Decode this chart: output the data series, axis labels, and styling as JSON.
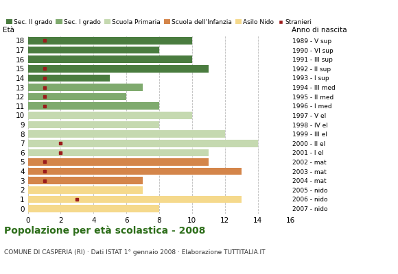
{
  "ages": [
    18,
    17,
    16,
    15,
    14,
    13,
    12,
    11,
    10,
    9,
    8,
    7,
    6,
    5,
    4,
    3,
    2,
    1,
    0
  ],
  "anno_nascita": [
    "1989 - V sup",
    "1990 - VI sup",
    "1991 - III sup",
    "1992 - II sup",
    "1993 - I sup",
    "1994 - III med",
    "1995 - II med",
    "1996 - I med",
    "1997 - V el",
    "1998 - IV el",
    "1999 - III el",
    "2000 - II el",
    "2001 - I el",
    "2002 - mat",
    "2003 - mat",
    "2004 - mat",
    "2005 - nido",
    "2006 - nido",
    "2007 - nido"
  ],
  "bar_values": [
    10,
    8,
    10,
    11,
    5,
    7,
    6,
    8,
    10,
    8,
    12,
    14,
    11,
    11,
    13,
    7,
    7,
    13,
    8
  ],
  "bar_colors": [
    "#4a7c3f",
    "#4a7c3f",
    "#4a7c3f",
    "#4a7c3f",
    "#4a7c3f",
    "#7faa6e",
    "#7faa6e",
    "#7faa6e",
    "#c5d9b0",
    "#c5d9b0",
    "#c5d9b0",
    "#c5d9b0",
    "#c5d9b0",
    "#d4854a",
    "#d4854a",
    "#d4854a",
    "#f5d98c",
    "#f5d98c",
    "#f5d98c"
  ],
  "stranieri_values": [
    1,
    0,
    0,
    1,
    1,
    1,
    1,
    1,
    0,
    0,
    0,
    2,
    2,
    1,
    1,
    1,
    0,
    3,
    0
  ],
  "stranieri_color": "#9b1c1c",
  "legend_labels": [
    "Sec. II grado",
    "Sec. I grado",
    "Scuola Primaria",
    "Scuola dell'Infanzia",
    "Asilo Nido",
    "Stranieri"
  ],
  "legend_colors": [
    "#4a7c3f",
    "#7faa6e",
    "#c5d9b0",
    "#d4854a",
    "#f5d98c",
    "#9b1c1c"
  ],
  "xlabel_vals": [
    0,
    2,
    4,
    6,
    8,
    10,
    12,
    14,
    16
  ],
  "xlim": [
    0,
    16
  ],
  "title": "Popolazione per età scolastica - 2008",
  "subtitle": "COMUNE DI CASPERIA (RI) · Dati ISTAT 1° gennaio 2008 · Elaborazione TUTTITALIA.IT",
  "eta_label": "Età",
  "anno_label": "Anno di nascita",
  "background_color": "#ffffff",
  "grid_color": "#bbbbbb"
}
